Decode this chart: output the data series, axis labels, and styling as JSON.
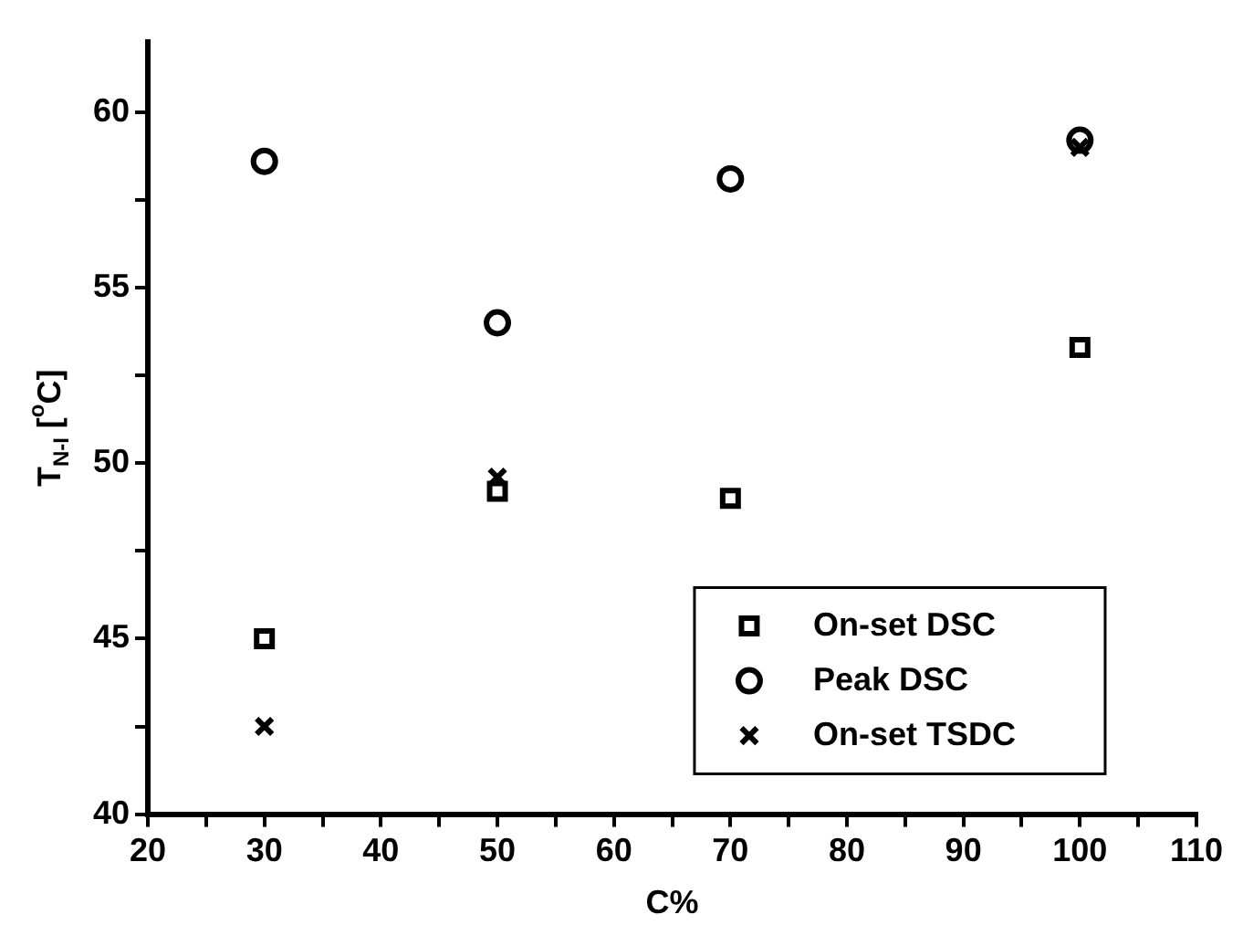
{
  "chart_data": {
    "type": "scatter",
    "xlabel": "C%",
    "ylabel": "T$_{N-I}$ [$^{o}$C]",
    "xlim": [
      20,
      110
    ],
    "ylim": [
      40,
      62
    ],
    "xticks": [
      20,
      {
        "value": 25,
        "label": null
      },
      30,
      {
        "value": 35,
        "label": null
      },
      40,
      {
        "value": 45,
        "label": null
      },
      50,
      {
        "value": 55,
        "label": null
      },
      60,
      {
        "value": 65,
        "label": null
      },
      70,
      {
        "value": 75,
        "label": null
      },
      80,
      {
        "value": 85,
        "label": null
      },
      90,
      {
        "value": 95,
        "label": null
      },
      100,
      {
        "value": 105,
        "label": null
      },
      110
    ],
    "yticks": [
      40,
      {
        "value": 42.5,
        "label": null
      },
      45,
      {
        "value": 47.5,
        "label": null
      },
      50,
      {
        "value": 52.5,
        "label": null
      },
      55,
      {
        "value": 57.5,
        "label": null
      },
      60
    ],
    "grid": false,
    "legend": "bottom right",
    "series": [
      {
        "name": "On-set DSC",
        "color": "#000000",
        "marker": "square",
        "x": [
          30,
          50,
          70,
          100
        ],
        "values": [
          45.0,
          49.2,
          49.0,
          53.3
        ]
      },
      {
        "name": "Peak DSC",
        "color": "#000000",
        "marker": "circle",
        "x": [
          30,
          50,
          70,
          100
        ],
        "values": [
          58.6,
          54.0,
          58.1,
          59.2
        ]
      },
      {
        "name": "On-set TSDC",
        "color": "#000000",
        "marker": "cross",
        "x": [
          30,
          50,
          70,
          100
        ],
        "values": [
          42.5,
          49.6,
          null,
          59.0
        ]
      }
    ]
  }
}
